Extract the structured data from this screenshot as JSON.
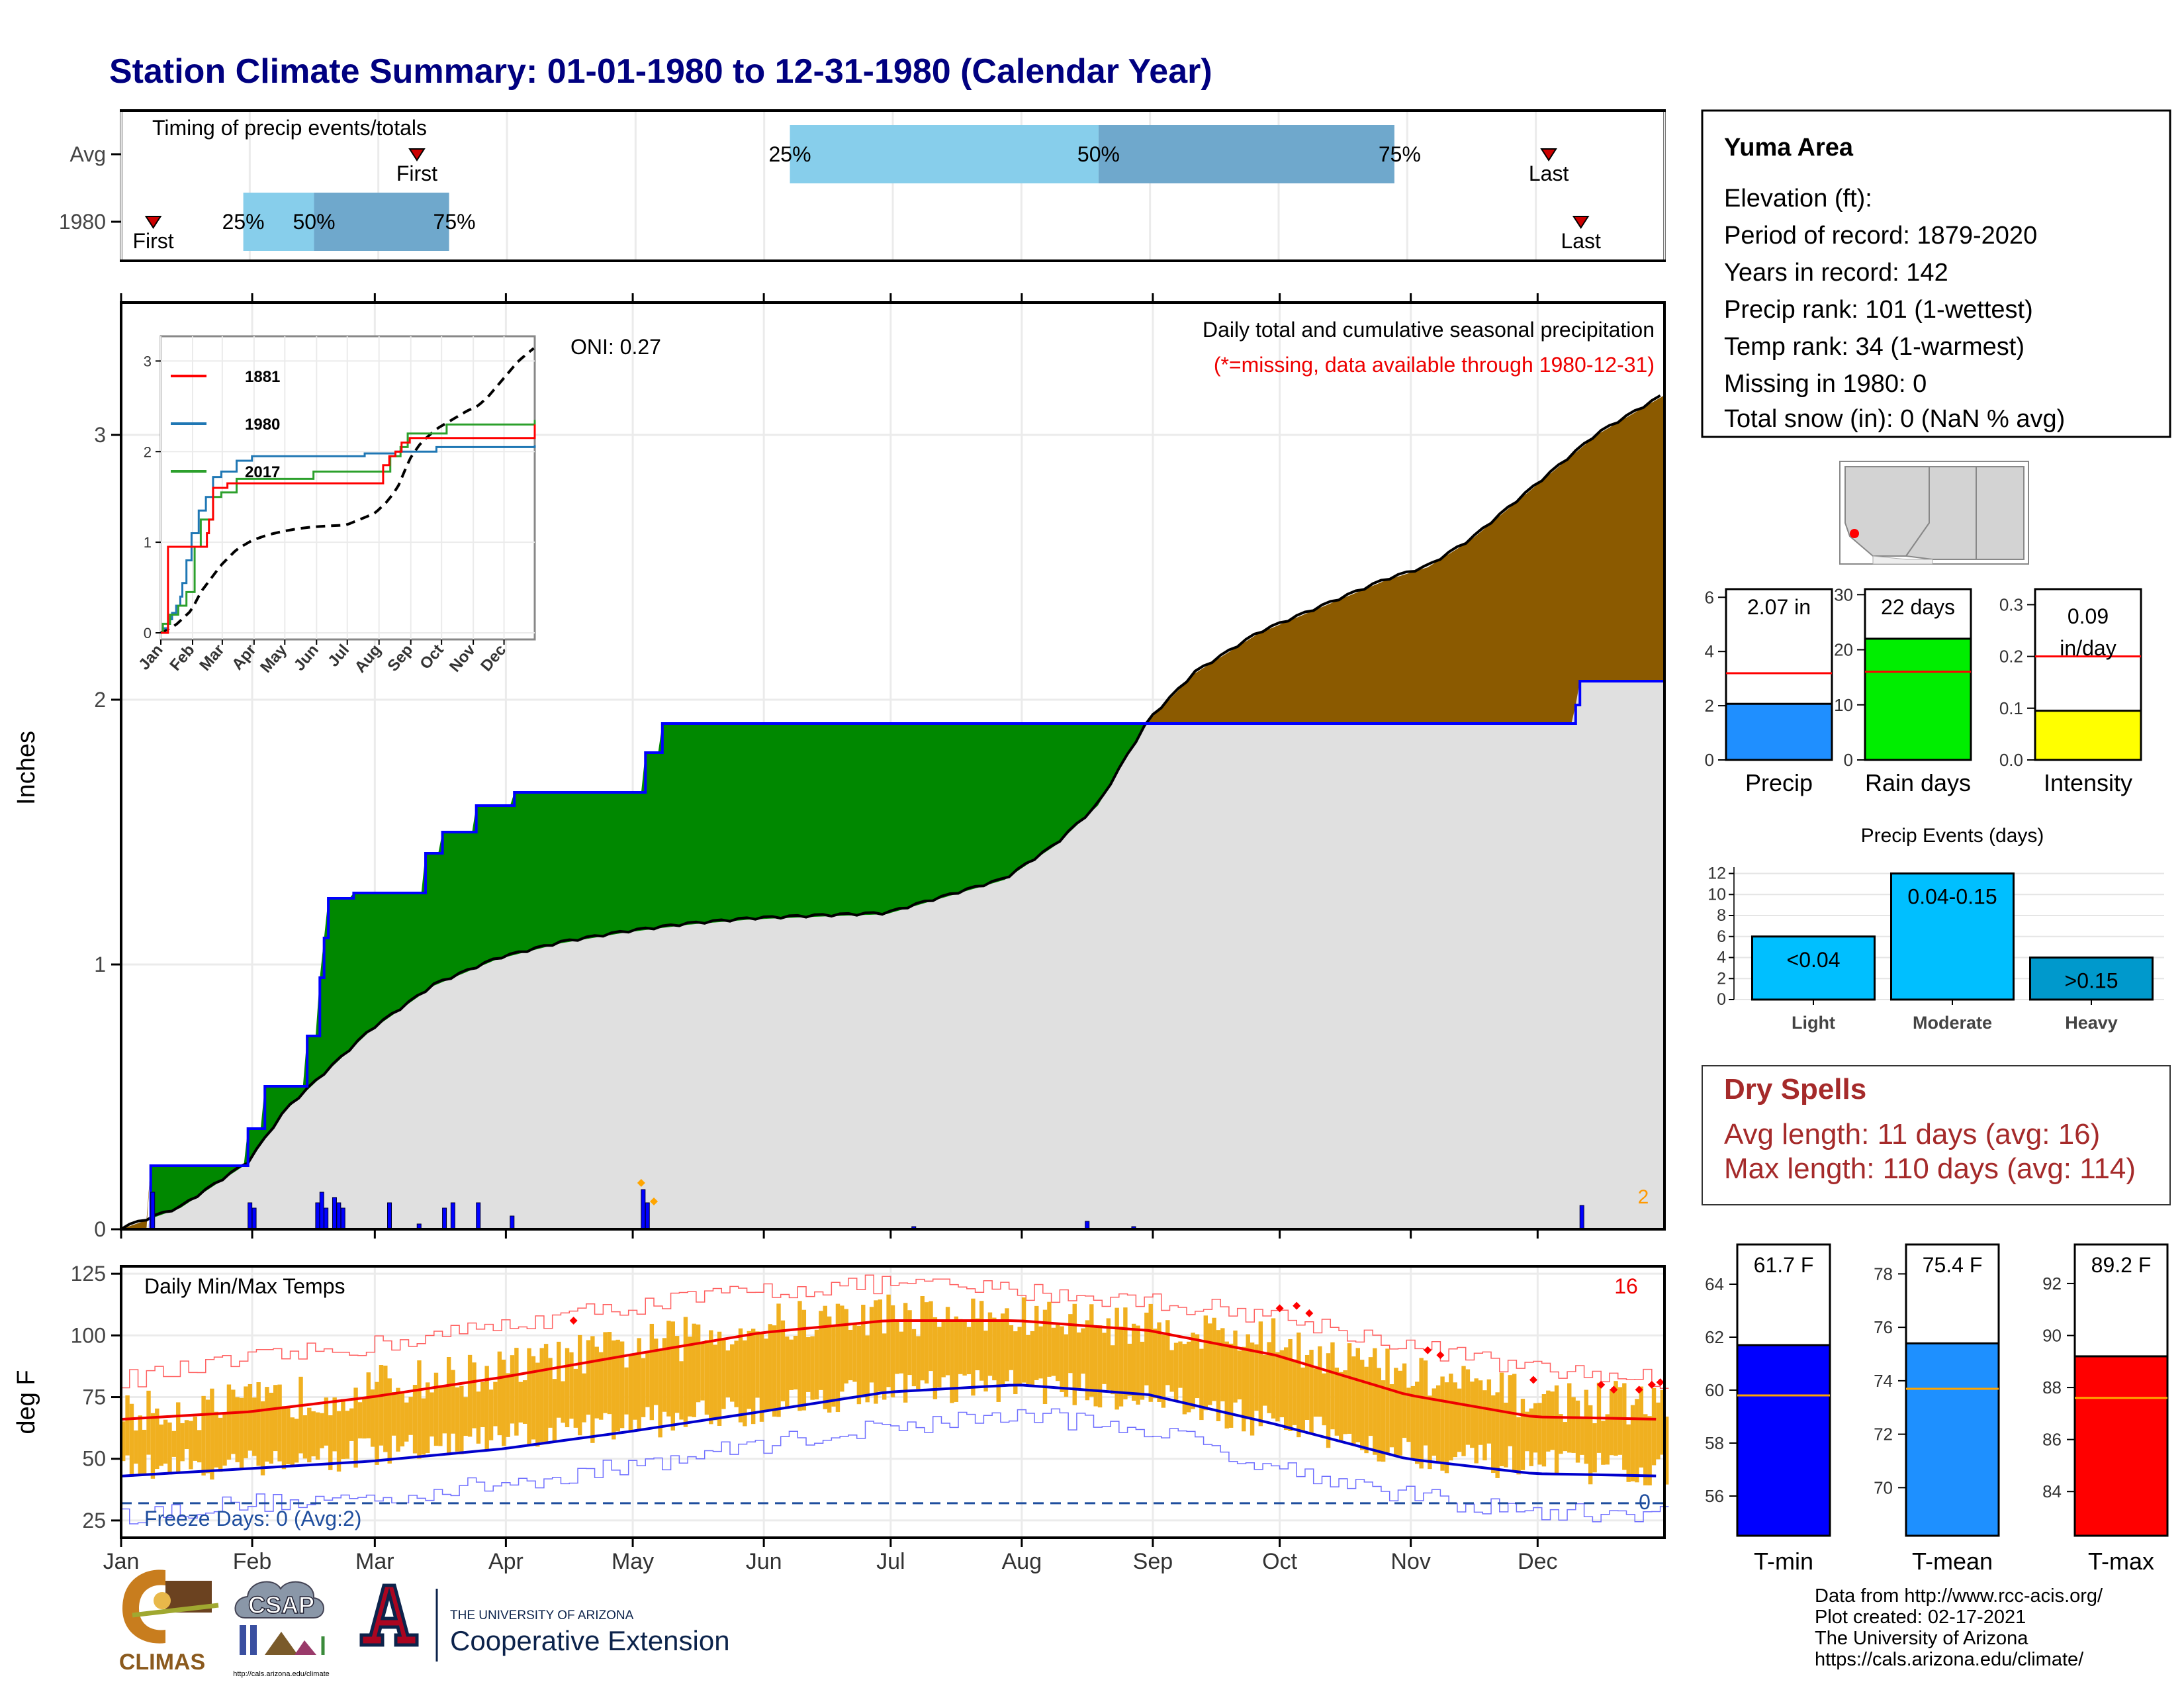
{
  "title": "Station Climate Summary: 01-01-1980 to 12-31-1980 (Calendar Year)",
  "colors": {
    "title": "#000080",
    "q_light": "#87ceeb",
    "q_dark": "#6fa8cc",
    "marker": "#cc0000",
    "avg_cum_fill": "#e0e0e0",
    "deficit": "#8b5a00",
    "surplus": "#008800",
    "cum_line": "#0000ff",
    "precip_bar": "#1f8fff",
    "raindays_bar": "#00ee00",
    "intensity_bar": "#ffff00",
    "events_bar": "#00bfff",
    "heavy_bar": "#0099cc",
    "dry_text": "#a52a2a",
    "tmin_bar": "#0000ff",
    "tmean_bar": "#1e90ff",
    "tmax_bar": "#ff0000",
    "temp_range": "#f0b020"
  },
  "timing": {
    "title": "Timing of precip events/totals",
    "rows": [
      {
        "label": "Avg",
        "first": 2.3,
        "last": 11.1,
        "q25": 5.2,
        "q50": 7.6,
        "q75": 9.9,
        "first_label": "First",
        "last_label": "Last",
        "q25_label": "25%",
        "q50_label": "50%",
        "q75_label": "75%"
      },
      {
        "label": "1980",
        "first": 0.25,
        "last": 11.35,
        "q25": 0.95,
        "q50": 1.5,
        "q75": 2.55,
        "first_label": "First",
        "last_label": "Last",
        "q25_label": "25%",
        "q50_label": "50%",
        "q75_label": "75%"
      }
    ]
  },
  "precip": {
    "ylabel": "Inches",
    "title": "Daily total and cumulative seasonal precipitation",
    "missing_note": "(*=missing, data available through 1980-12-31)",
    "oni_label": "ONI: 0.27",
    "corner_count": "2",
    "y_ticks": [
      "0",
      "1",
      "2",
      "3"
    ],
    "ylim": [
      0,
      3.5
    ]
  },
  "months": [
    "Jan",
    "Feb",
    "Mar",
    "Apr",
    "May",
    "Jun",
    "Jul",
    "Aug",
    "Sep",
    "Oct",
    "Nov",
    "Dec"
  ],
  "inset": {
    "y_ticks": [
      "0",
      "1",
      "2",
      "3"
    ],
    "legend": [
      "1881",
      "1980",
      "2017"
    ],
    "legend_colors": [
      "#ff0000",
      "#1f77b4",
      "#2ca02c"
    ]
  },
  "temps": {
    "ylabel": "deg F",
    "title": "Daily Min/Max Temps",
    "corner_count": "16",
    "freeze_label": "Freeze Days: 0 (Avg:2)",
    "freeze_count": "0",
    "y_ticks": [
      "25",
      "50",
      "75",
      "100",
      "125"
    ],
    "ylim": [
      18,
      128
    ]
  },
  "station": {
    "name": "Yuma Area",
    "lines": [
      "Elevation (ft):",
      "Period of record: 1879-2020",
      "Years in record: 142",
      "Precip rank: 101 (1-wettest)",
      "Temp rank: 34 (1-warmest)",
      "Missing in 1980: 0",
      "Total snow (in): 0 (NaN % avg)"
    ]
  },
  "summary_bars": [
    {
      "name": "Precip",
      "label": "2.07 in",
      "value": 2.07,
      "avg": 3.2,
      "ymax": 6.3,
      "ticks": [
        "0",
        "2",
        "4",
        "6"
      ],
      "tick_vals": [
        0,
        2,
        4,
        6
      ]
    },
    {
      "name": "Rain days",
      "label": "22 days",
      "value": 22,
      "avg": 16,
      "ymax": 31,
      "ticks": [
        "0",
        "10",
        "20",
        "30"
      ],
      "tick_vals": [
        0,
        10,
        20,
        30
      ]
    },
    {
      "name": "Intensity",
      "label": "0.09",
      "label2": "in/day",
      "value": 0.095,
      "avg": 0.2,
      "ymax": 0.33,
      "ticks": [
        "0.0",
        "0.1",
        "0.2",
        "0.3"
      ],
      "tick_vals": [
        0,
        0.1,
        0.2,
        0.3
      ]
    }
  ],
  "events": {
    "title": "Precip Events (days)",
    "categories": [
      "Light",
      "Moderate",
      "Heavy"
    ],
    "labels": [
      "<0.04",
      "0.04-0.15",
      ">0.15"
    ],
    "values": [
      6,
      12,
      4
    ],
    "ticks": [
      "0",
      "2",
      "4",
      "6",
      "8",
      "10",
      "12"
    ]
  },
  "dry_spells": {
    "title": "Dry Spells",
    "avg_line": "Avg length: 11 days (avg: 16)",
    "max_line": "Max length: 110 days (avg: 114)"
  },
  "temp_bars": [
    {
      "name": "T-min",
      "label": "61.7 F",
      "value": 61.7,
      "avg": 59.8,
      "ymin": 54.5,
      "ymax": 65.5,
      "ticks": [
        "56",
        "58",
        "60",
        "62",
        "64"
      ],
      "tick_vals": [
        56,
        58,
        60,
        62,
        64
      ]
    },
    {
      "name": "T-mean",
      "label": "75.4 F",
      "value": 75.4,
      "avg": 73.7,
      "ymin": 68.2,
      "ymax": 79.1,
      "ticks": [
        "70",
        "72",
        "74",
        "76",
        "78"
      ],
      "tick_vals": [
        70,
        72,
        74,
        76,
        78
      ]
    },
    {
      "name": "T-max",
      "label": "89.2 F",
      "value": 89.2,
      "avg": 87.6,
      "ymin": 82.3,
      "ymax": 93.5,
      "ticks": [
        "84",
        "86",
        "88",
        "90",
        "92"
      ],
      "tick_vals": [
        84,
        86,
        88,
        90,
        92
      ]
    }
  ],
  "footer": {
    "credits": [
      "Data from http://www.rcc-acis.org/",
      "Plot created: 02-17-2021",
      "The University of Arizona",
      "https://cals.arizona.edu/climate/"
    ],
    "climas": "CLIMAS",
    "csap": "CSAP",
    "csap_url": "http://cals.arizona.edu/climate",
    "ua_small": "THE UNIVERSITY OF ARIZONA",
    "ua_big": "Cooperative Extension"
  },
  "chart_data": [
    {
      "type": "area",
      "title": "Daily total and cumulative seasonal precipitation",
      "ylabel": "Inches",
      "ylim": [
        0,
        3.5
      ],
      "x_units": "day of year",
      "series": [
        {
          "name": "avg_cumulative",
          "x": [
            1,
            15,
            31,
            40,
            50,
            60,
            75,
            90,
            105,
            120,
            135,
            150,
            165,
            182,
            195,
            210,
            222,
            232,
            244,
            255,
            270,
            285,
            300,
            310,
            320,
            335,
            350,
            366
          ],
          "values": [
            0,
            0.08,
            0.25,
            0.45,
            0.6,
            0.75,
            0.92,
            1.02,
            1.08,
            1.12,
            1.15,
            1.17,
            1.18,
            1.19,
            1.25,
            1.32,
            1.45,
            1.6,
            1.92,
            2.1,
            2.25,
            2.35,
            2.45,
            2.5,
            2.6,
            2.8,
            3.0,
            3.15
          ]
        },
        {
          "name": "1980_cumulative",
          "x": [
            1,
            7,
            8,
            30,
            31,
            34,
            35,
            44,
            45,
            47,
            48,
            49,
            50,
            55,
            56,
            72,
            73,
            76,
            77,
            84,
            85,
            93,
            94,
            124,
            125,
            128,
            129,
            345,
            346,
            366
          ],
          "values": [
            0,
            0,
            0.24,
            0.24,
            0.38,
            0.38,
            0.54,
            0.54,
            0.73,
            0.73,
            0.95,
            1.1,
            1.25,
            1.25,
            1.27,
            1.27,
            1.42,
            1.42,
            1.5,
            1.5,
            1.6,
            1.6,
            1.65,
            1.65,
            1.8,
            1.8,
            1.91,
            1.98,
            2.07,
            2.07
          ]
        }
      ],
      "daily_bars": {
        "x": [
          8,
          31,
          32,
          47,
          48,
          49,
          51,
          52,
          53,
          64,
          71,
          77,
          79,
          85,
          93,
          124,
          125,
          188,
          229,
          240,
          346
        ],
        "values": [
          0.14,
          0.1,
          0.08,
          0.1,
          0.14,
          0.08,
          0.12,
          0.1,
          0.08,
          0.1,
          0.02,
          0.08,
          0.1,
          0.1,
          0.05,
          0.15,
          0.1,
          0.01,
          0.03,
          0.01,
          0.09
        ]
      }
    },
    {
      "type": "line",
      "title": "Daily Min/Max Temps",
      "ylabel": "deg F",
      "ylim": [
        18,
        128
      ],
      "x": [
        1,
        31,
        60,
        91,
        121,
        152,
        182,
        213,
        244,
        274,
        305,
        335,
        366
      ],
      "series": [
        {
          "name": "normal_max",
          "values": [
            66,
            69,
            75,
            83,
            92,
            101,
            106,
            106,
            102,
            92,
            76,
            67,
            66
          ]
        },
        {
          "name": "normal_min",
          "values": [
            43,
            46,
            49,
            54,
            61,
            69,
            77,
            80,
            76,
            64,
            50,
            44,
            43
          ]
        },
        {
          "name": "record_max",
          "values": [
            82,
            90,
            96,
            104,
            112,
            118,
            121,
            118,
            114,
            108,
            96,
            86,
            82
          ]
        },
        {
          "name": "record_min",
          "values": [
            27,
            32,
            34,
            40,
            47,
            56,
            63,
            68,
            62,
            47,
            35,
            28,
            28
          ]
        },
        {
          "name": "daily_max_1980",
          "values": [
            68,
            72,
            79,
            86,
            95,
            104,
            109,
            107,
            104,
            98,
            84,
            74,
            72
          ]
        },
        {
          "name": "daily_min_1980",
          "values": [
            46,
            49,
            52,
            58,
            64,
            71,
            79,
            80,
            75,
            64,
            53,
            47,
            45
          ]
        }
      ],
      "freeze_threshold": 32
    }
  ]
}
